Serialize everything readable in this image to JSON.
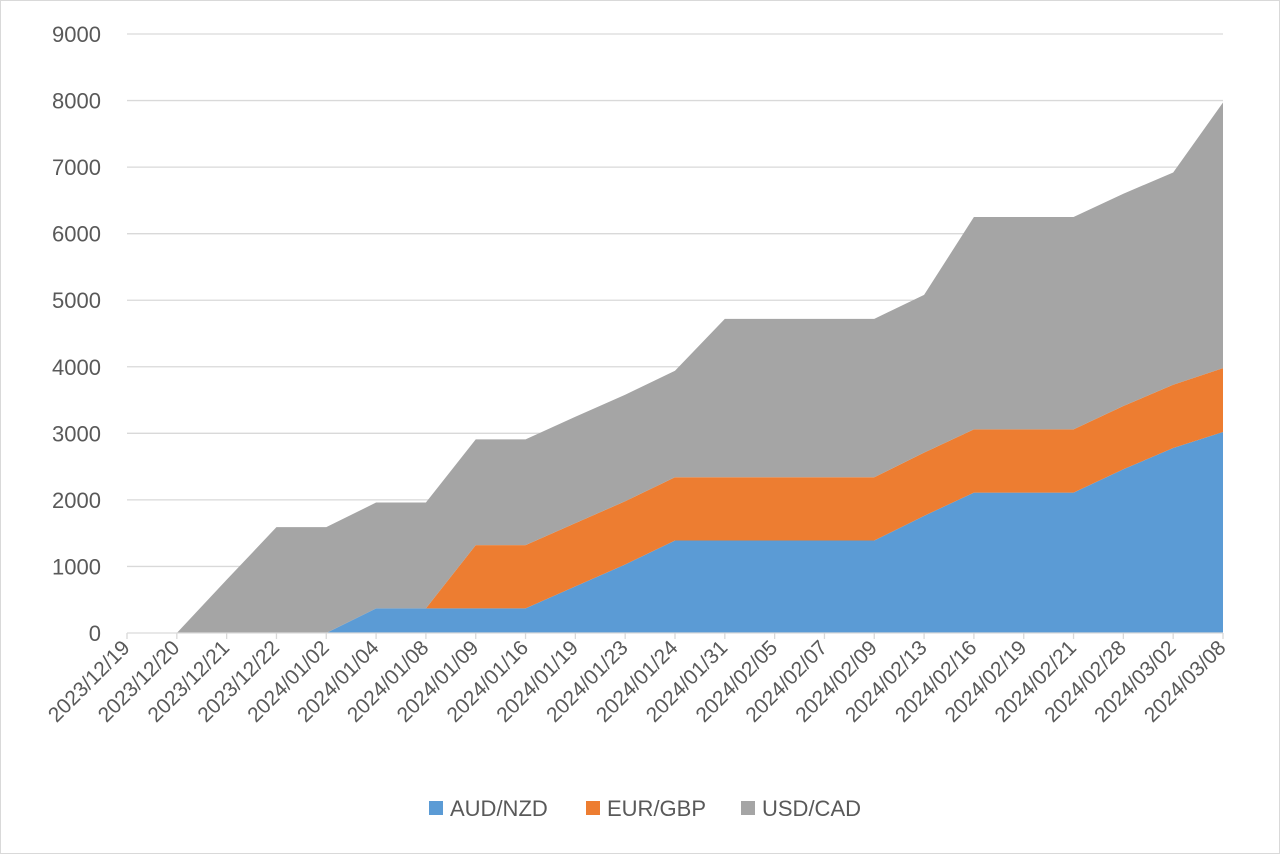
{
  "chart_data": {
    "type": "area",
    "stacked": true,
    "categories": [
      "2023/12/19",
      "2023/12/20",
      "2023/12/21",
      "2023/12/22",
      "2024/01/02",
      "2024/01/04",
      "2024/01/08",
      "2024/01/09",
      "2024/01/16",
      "2024/01/19",
      "2024/01/23",
      "2024/01/24",
      "2024/01/31",
      "2024/02/05",
      "2024/02/07",
      "2024/02/09",
      "2024/02/13",
      "2024/02/16",
      "2024/02/19",
      "2024/02/21",
      "2024/02/28",
      "2024/03/02",
      "2024/03/08"
    ],
    "series": [
      {
        "name": "AUD/NZD",
        "color": "#5b9bd5",
        "values": [
          null,
          0,
          0,
          0,
          0,
          370,
          370,
          370,
          370,
          700,
          1030,
          1390,
          1390,
          1390,
          1390,
          1390,
          1760,
          2110,
          2110,
          2110,
          2460,
          2780,
          3020
        ]
      },
      {
        "name": "EUR/GBP",
        "color": "#ed7d31",
        "values": [
          null,
          0,
          0,
          0,
          0,
          0,
          0,
          950,
          950,
          950,
          950,
          950,
          950,
          950,
          950,
          950,
          950,
          950,
          950,
          950,
          950,
          950,
          960
        ]
      },
      {
        "name": "USD/CAD",
        "color": "#a5a5a5",
        "values": [
          null,
          0,
          800,
          1590,
          1590,
          1590,
          1590,
          1590,
          1590,
          1600,
          1600,
          1600,
          2380,
          2380,
          2380,
          2380,
          2370,
          3190,
          3190,
          3190,
          3190,
          3190,
          3990
        ]
      }
    ],
    "ylim": [
      0,
      9000
    ],
    "yticks": [
      0,
      1000,
      2000,
      3000,
      4000,
      5000,
      6000,
      7000,
      8000,
      9000
    ],
    "grid": true,
    "legend": "bottom",
    "xlabel": "",
    "ylabel": "",
    "title": ""
  }
}
